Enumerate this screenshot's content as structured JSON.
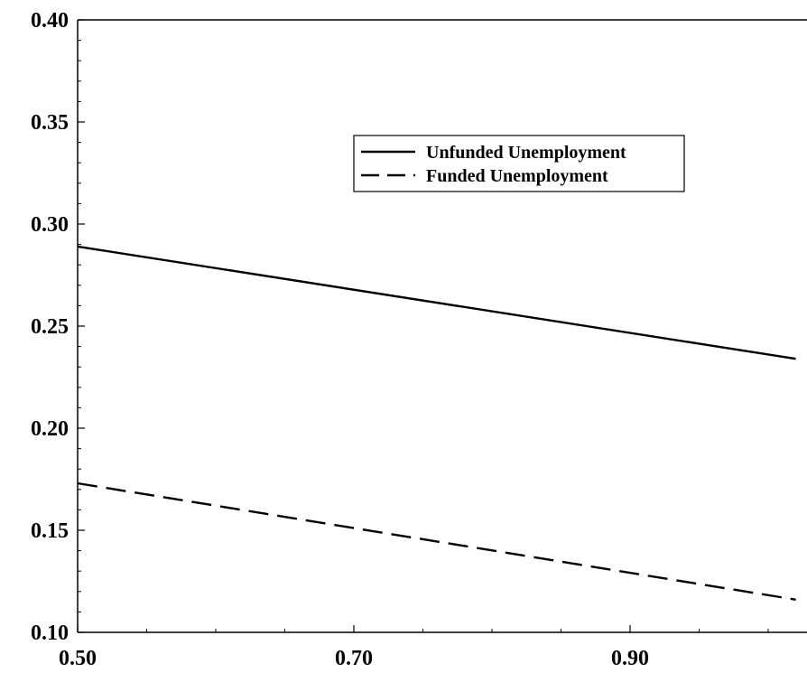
{
  "chart_data": {
    "type": "line",
    "title": "",
    "xlabel": "",
    "ylabel": "",
    "xlim": [
      0.5,
      1.02
    ],
    "ylim": [
      0.1,
      0.4
    ],
    "x_ticks": [
      "0.50",
      "0.70",
      "0.90"
    ],
    "y_ticks": [
      "0.10",
      "0.15",
      "0.20",
      "0.25",
      "0.30",
      "0.35",
      "0.40"
    ],
    "grid": false,
    "legend_position": "top-right",
    "series": [
      {
        "name": "Unfunded Unemployment",
        "style": "solid",
        "color": "#000000",
        "x": [
          0.5,
          1.02
        ],
        "y": [
          0.289,
          0.234
        ]
      },
      {
        "name": "Funded Unemployment",
        "style": "dashed",
        "color": "#000000",
        "x": [
          0.5,
          1.02
        ],
        "y": [
          0.173,
          0.116
        ]
      }
    ]
  }
}
